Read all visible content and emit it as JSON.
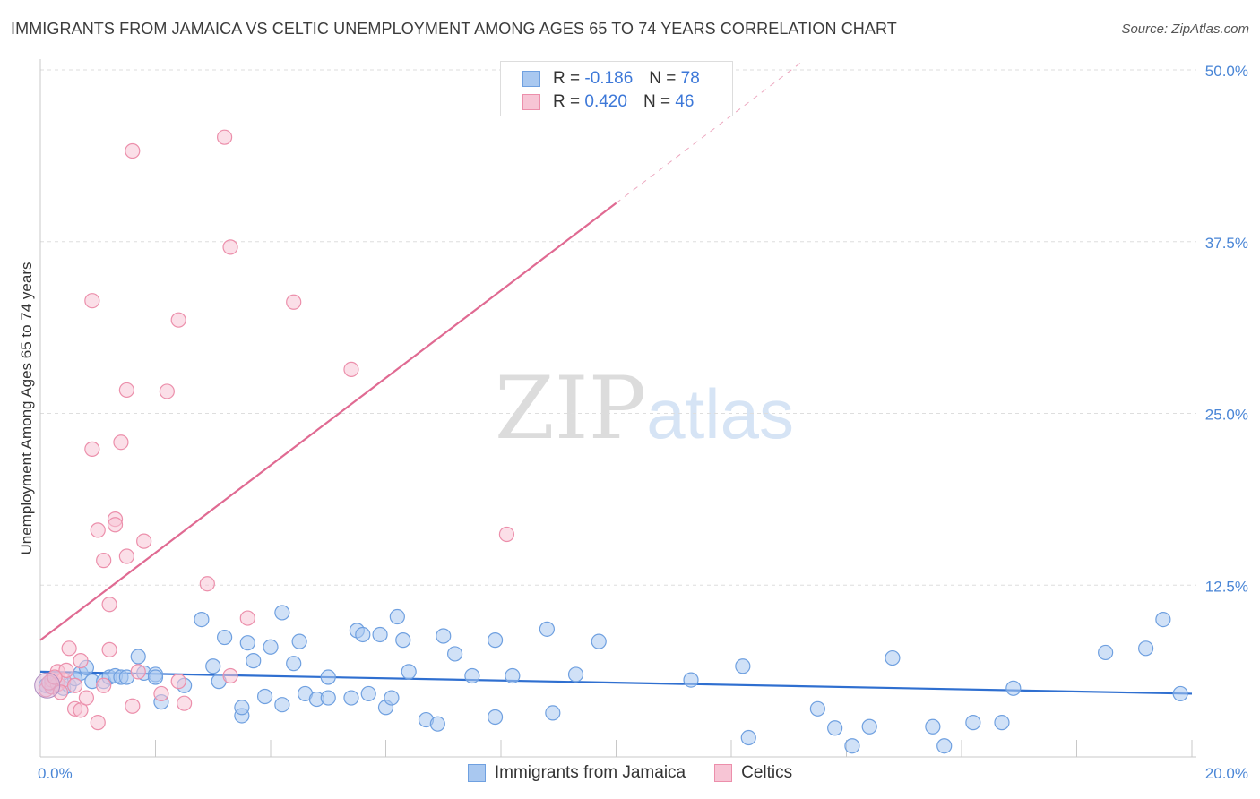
{
  "header": {
    "title": "IMMIGRANTS FROM JAMAICA VS CELTIC UNEMPLOYMENT AMONG AGES 65 TO 74 YEARS CORRELATION CHART",
    "source": "Source: ZipAtlas.com"
  },
  "watermark": {
    "zip": "ZIP",
    "atlas": "atlas"
  },
  "legend": {
    "r_label": "R =",
    "n_label": "N =",
    "series": [
      {
        "r": "-0.186",
        "n": "78"
      },
      {
        "r": "0.420",
        "n": "46"
      }
    ]
  },
  "chart_data": {
    "type": "scatter",
    "title": "IMMIGRANTS FROM JAMAICA VS CELTIC UNEMPLOYMENT AMONG AGES 65 TO 74 YEARS CORRELATION CHART",
    "xlabel": "",
    "ylabel": "Unemployment Among Ages 65 to 74 years",
    "xlim": [
      0,
      20
    ],
    "ylim": [
      0,
      50
    ],
    "x_tick_labels": [
      {
        "v": 0,
        "label": "0.0%"
      },
      {
        "v": 20,
        "label": "20.0%"
      }
    ],
    "y_tick_labels": [
      {
        "v": 12.5,
        "label": "12.5%"
      },
      {
        "v": 25,
        "label": "25.0%"
      },
      {
        "v": 37.5,
        "label": "37.5%"
      },
      {
        "v": 50,
        "label": "50.0%"
      }
    ],
    "grid": true,
    "legend_position": "bottom-center",
    "series": [
      {
        "name": "Immigrants from Jamaica",
        "color": "#6fa0e0",
        "fill": "#a9c8f0",
        "trend": {
          "x0": 0,
          "y0": 6.2,
          "x1": 20,
          "y1": 4.6,
          "color": "#2f6fd0"
        },
        "points": [
          [
            0.1,
            5.2
          ],
          [
            0.2,
            5.4
          ],
          [
            0.3,
            5.3
          ],
          [
            0.4,
            5.0
          ],
          [
            0.5,
            5.2
          ],
          [
            0.7,
            6.1
          ],
          [
            0.8,
            6.5
          ],
          [
            0.9,
            5.5
          ],
          [
            1.1,
            5.5
          ],
          [
            1.2,
            5.8
          ],
          [
            1.3,
            5.9
          ],
          [
            1.4,
            5.8
          ],
          [
            1.5,
            5.8
          ],
          [
            1.7,
            7.3
          ],
          [
            1.8,
            6.1
          ],
          [
            2.0,
            6.0
          ],
          [
            2.0,
            5.8
          ],
          [
            2.1,
            4.0
          ],
          [
            2.5,
            5.2
          ],
          [
            2.8,
            10.0
          ],
          [
            3.0,
            6.6
          ],
          [
            3.1,
            5.5
          ],
          [
            3.2,
            8.7
          ],
          [
            3.5,
            3.0
          ],
          [
            3.5,
            3.6
          ],
          [
            3.6,
            8.3
          ],
          [
            3.7,
            7.0
          ],
          [
            3.9,
            4.4
          ],
          [
            4.0,
            8.0
          ],
          [
            4.2,
            3.8
          ],
          [
            4.2,
            10.5
          ],
          [
            4.4,
            6.8
          ],
          [
            4.5,
            8.4
          ],
          [
            4.6,
            4.6
          ],
          [
            4.8,
            4.2
          ],
          [
            5.0,
            5.8
          ],
          [
            5.0,
            4.3
          ],
          [
            5.4,
            4.3
          ],
          [
            5.5,
            9.2
          ],
          [
            5.6,
            8.9
          ],
          [
            5.7,
            4.6
          ],
          [
            5.9,
            8.9
          ],
          [
            6.0,
            3.6
          ],
          [
            6.1,
            4.3
          ],
          [
            6.2,
            10.2
          ],
          [
            6.3,
            8.5
          ],
          [
            6.4,
            6.2
          ],
          [
            6.7,
            2.7
          ],
          [
            6.9,
            2.4
          ],
          [
            7.0,
            8.8
          ],
          [
            7.2,
            7.5
          ],
          [
            7.5,
            5.9
          ],
          [
            7.9,
            2.9
          ],
          [
            7.9,
            8.5
          ],
          [
            8.2,
            5.9
          ],
          [
            8.8,
            9.3
          ],
          [
            8.9,
            3.2
          ],
          [
            9.3,
            6.0
          ],
          [
            9.7,
            8.4
          ],
          [
            11.3,
            5.6
          ],
          [
            12.2,
            6.6
          ],
          [
            12.3,
            1.4
          ],
          [
            13.5,
            3.5
          ],
          [
            13.8,
            2.1
          ],
          [
            14.1,
            0.8
          ],
          [
            14.4,
            2.2
          ],
          [
            14.8,
            7.2
          ],
          [
            15.5,
            2.2
          ],
          [
            15.7,
            0.8
          ],
          [
            16.2,
            2.5
          ],
          [
            16.7,
            2.5
          ],
          [
            16.9,
            5.0
          ],
          [
            18.5,
            7.6
          ],
          [
            19.2,
            7.9
          ],
          [
            19.5,
            10.0
          ],
          [
            19.8,
            4.6
          ],
          [
            0.3,
            5.6
          ],
          [
            0.6,
            5.7
          ]
        ]
      },
      {
        "name": "Celtics",
        "color": "#ec8fab",
        "fill": "#f7c5d5",
        "trend": {
          "x0": 0,
          "y0": 8.5,
          "x1": 10,
          "y1": 40.3,
          "color": "#e06a92",
          "dash_to": {
            "x": 13.2,
            "y": 50.5
          }
        },
        "points": [
          [
            0.1,
            4.9
          ],
          [
            0.2,
            5.1
          ],
          [
            0.2,
            5.6
          ],
          [
            0.3,
            5.3
          ],
          [
            0.3,
            6.2
          ],
          [
            0.4,
            5.6
          ],
          [
            0.5,
            7.9
          ],
          [
            0.6,
            3.5
          ],
          [
            0.6,
            5.2
          ],
          [
            0.7,
            3.4
          ],
          [
            0.7,
            7.0
          ],
          [
            0.8,
            4.3
          ],
          [
            0.9,
            33.2
          ],
          [
            0.9,
            22.4
          ],
          [
            1.0,
            2.5
          ],
          [
            1.0,
            16.5
          ],
          [
            1.1,
            14.3
          ],
          [
            1.1,
            5.2
          ],
          [
            1.2,
            7.8
          ],
          [
            1.2,
            11.1
          ],
          [
            1.3,
            17.3
          ],
          [
            1.3,
            16.9
          ],
          [
            1.4,
            22.9
          ],
          [
            1.5,
            26.7
          ],
          [
            1.5,
            14.6
          ],
          [
            1.6,
            3.7
          ],
          [
            1.6,
            44.1
          ],
          [
            1.7,
            6.2
          ],
          [
            1.8,
            15.7
          ],
          [
            2.1,
            4.6
          ],
          [
            2.2,
            26.6
          ],
          [
            2.4,
            31.8
          ],
          [
            2.4,
            5.5
          ],
          [
            2.5,
            3.9
          ],
          [
            2.9,
            12.6
          ],
          [
            3.2,
            45.1
          ],
          [
            3.3,
            37.1
          ],
          [
            3.3,
            5.9
          ],
          [
            3.6,
            10.1
          ],
          [
            4.4,
            33.1
          ],
          [
            5.4,
            28.2
          ],
          [
            8.1,
            16.2
          ],
          [
            0.15,
            5.4
          ],
          [
            0.35,
            4.7
          ],
          [
            0.45,
            6.3
          ],
          [
            0.25,
            5.8
          ]
        ]
      }
    ]
  }
}
